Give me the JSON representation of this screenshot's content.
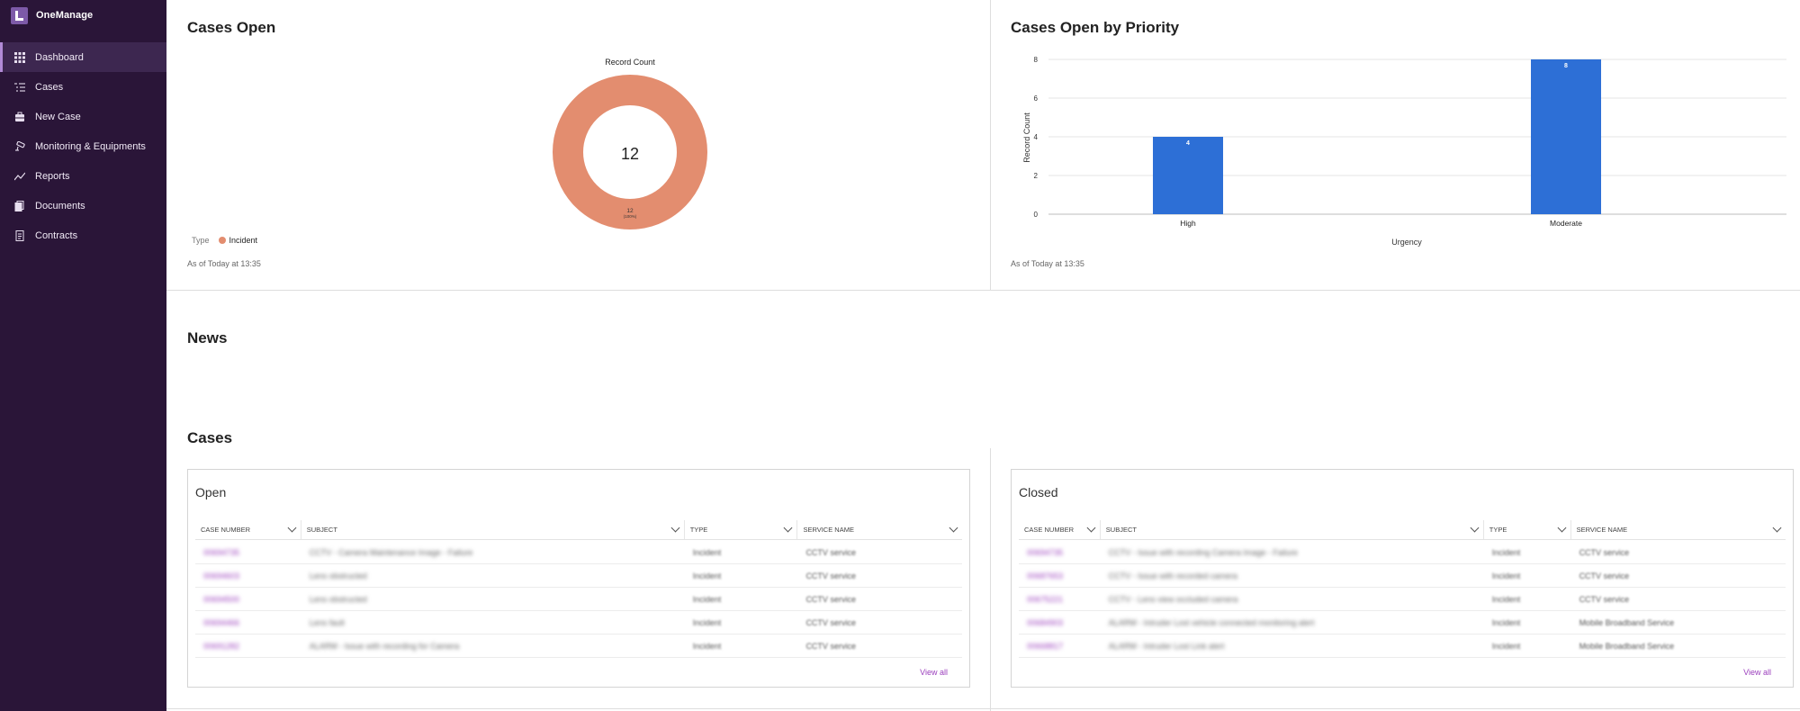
{
  "app": {
    "name": "OneManage"
  },
  "sidebar": {
    "items": [
      {
        "label": "Dashboard",
        "icon": "grid-icon",
        "active": true
      },
      {
        "label": "Cases",
        "icon": "list-icon"
      },
      {
        "label": "New Case",
        "icon": "briefcase-icon"
      },
      {
        "label": "Monitoring & Equipments",
        "icon": "cctv-icon"
      },
      {
        "label": "Reports",
        "icon": "trend-icon"
      },
      {
        "label": "Documents",
        "icon": "documents-icon"
      },
      {
        "label": "Contracts",
        "icon": "contract-icon"
      }
    ]
  },
  "cases_open": {
    "title": "Cases Open",
    "footer": "As of Today at 13:35",
    "legend_title": "Type",
    "legend_item": "Incident",
    "chart_data": {
      "type": "pie",
      "title": "Record Count",
      "center_value": "12",
      "slices": [
        {
          "label": "Incident",
          "value": 12,
          "percent_label": "(100%)"
        }
      ],
      "colors": {
        "Incident": "#e38d6f"
      }
    }
  },
  "cases_by_priority": {
    "title": "Cases Open by Priority",
    "footer": "As of Today at 13:35",
    "chart_data": {
      "type": "bar",
      "categories": [
        "High",
        "Moderate"
      ],
      "values": [
        4,
        8
      ],
      "xlabel": "Urgency",
      "ylabel": "Record Count",
      "ylim": [
        0,
        8
      ],
      "yticks": [
        0,
        2,
        4,
        6,
        8
      ],
      "grid": true,
      "color": "#2d6fd6"
    }
  },
  "news": {
    "title": "News"
  },
  "cases": {
    "title": "Cases",
    "open": {
      "title": "Open",
      "columns": [
        "CASE NUMBER",
        "SUBJECT",
        "TYPE",
        "SERVICE NAME"
      ],
      "rows": [
        [
          "00694735",
          "CCTV - Camera Maintenance Image - Failure",
          "Incident",
          "CCTV service"
        ],
        [
          "00694603",
          "Lens obstructed",
          "Incident",
          "CCTV service"
        ],
        [
          "00694500",
          "Lens obstructed",
          "Incident",
          "CCTV service"
        ],
        [
          "00694466",
          "Lens fault",
          "Incident",
          "CCTV service"
        ],
        [
          "00691282",
          "ALARM - Issue with recording for Camera",
          "Incident",
          "CCTV service"
        ]
      ],
      "view_all": "View all"
    },
    "closed": {
      "title": "Closed",
      "columns": [
        "CASE NUMBER",
        "SUBJECT",
        "TYPE",
        "SERVICE NAME"
      ],
      "rows": [
        [
          "00694735",
          "CCTV - Issue with recording Camera Image - Failure",
          "Incident",
          "CCTV service"
        ],
        [
          "00687653",
          "CCTV - Issue with recorded camera",
          "Incident",
          "CCTV service"
        ],
        [
          "00675221",
          "CCTV - Lens view occluded camera",
          "Incident",
          "CCTV service"
        ],
        [
          "00684903",
          "ALARM - Intruder Lost vehicle connected monitoring alert",
          "Incident",
          "Mobile Broadband Service"
        ],
        [
          "00668817",
          "ALARM - Intruder Lost Link alert",
          "Incident",
          "Mobile Broadband Service"
        ]
      ],
      "view_all": "View all"
    }
  }
}
